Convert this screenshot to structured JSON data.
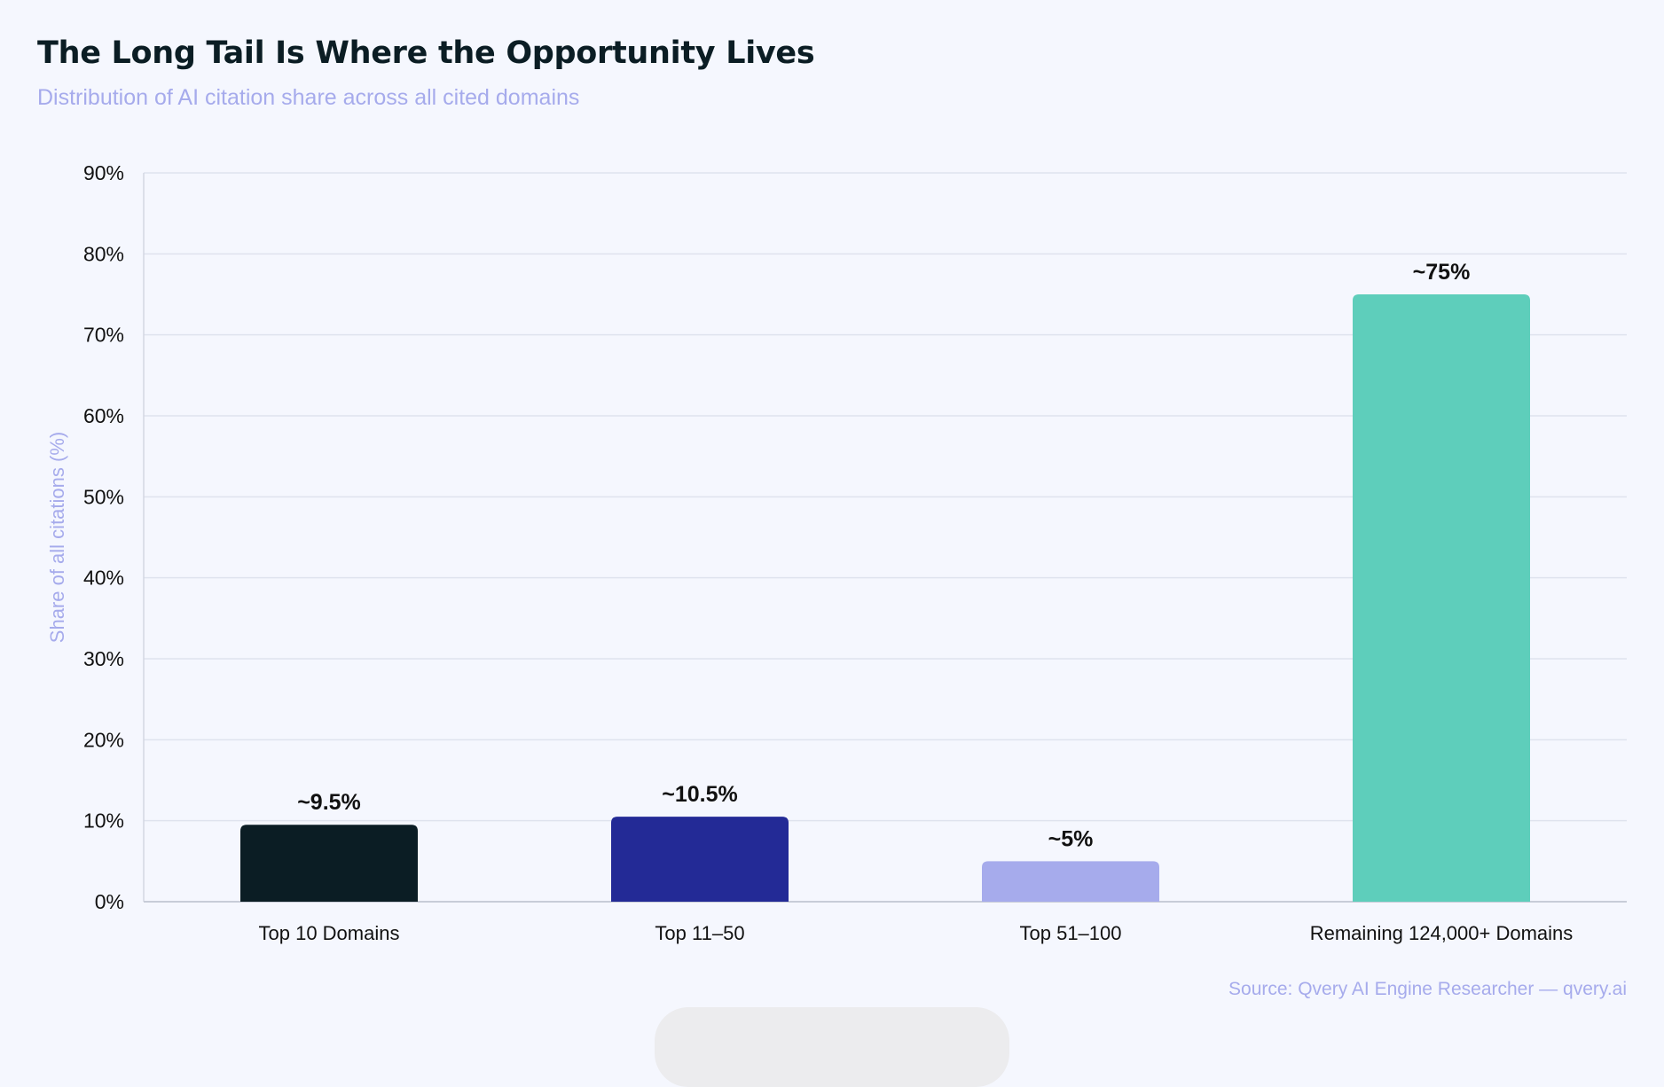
{
  "chart_data": {
    "type": "bar",
    "title": "The Long Tail Is Where the Opportunity Lives",
    "subtitle": "Distribution of AI citation share across all cited domains",
    "xlabel": "",
    "ylabel": "Share of all citations (%)",
    "categories": [
      "Top 10 Domains",
      "Top 11–50",
      "Top 51–100",
      "Remaining 124,000+ Domains"
    ],
    "values": [
      9.5,
      10.5,
      5,
      75
    ],
    "data_labels": [
      "~9.5%",
      "~10.5%",
      "~5%",
      "~75%"
    ],
    "colors": [
      "#0b1d24",
      "#232a96",
      "#a6abec",
      "#5ecebb"
    ],
    "ylim": [
      0,
      90
    ],
    "yticks": [
      0,
      10,
      20,
      30,
      40,
      50,
      60,
      70,
      80,
      90
    ],
    "ytick_labels": [
      "0%",
      "10%",
      "20%",
      "30%",
      "40%",
      "50%",
      "60%",
      "70%",
      "80%",
      "90%"
    ],
    "grid": true,
    "source": "Source: Qvery AI Engine Researcher — qvery.ai"
  }
}
